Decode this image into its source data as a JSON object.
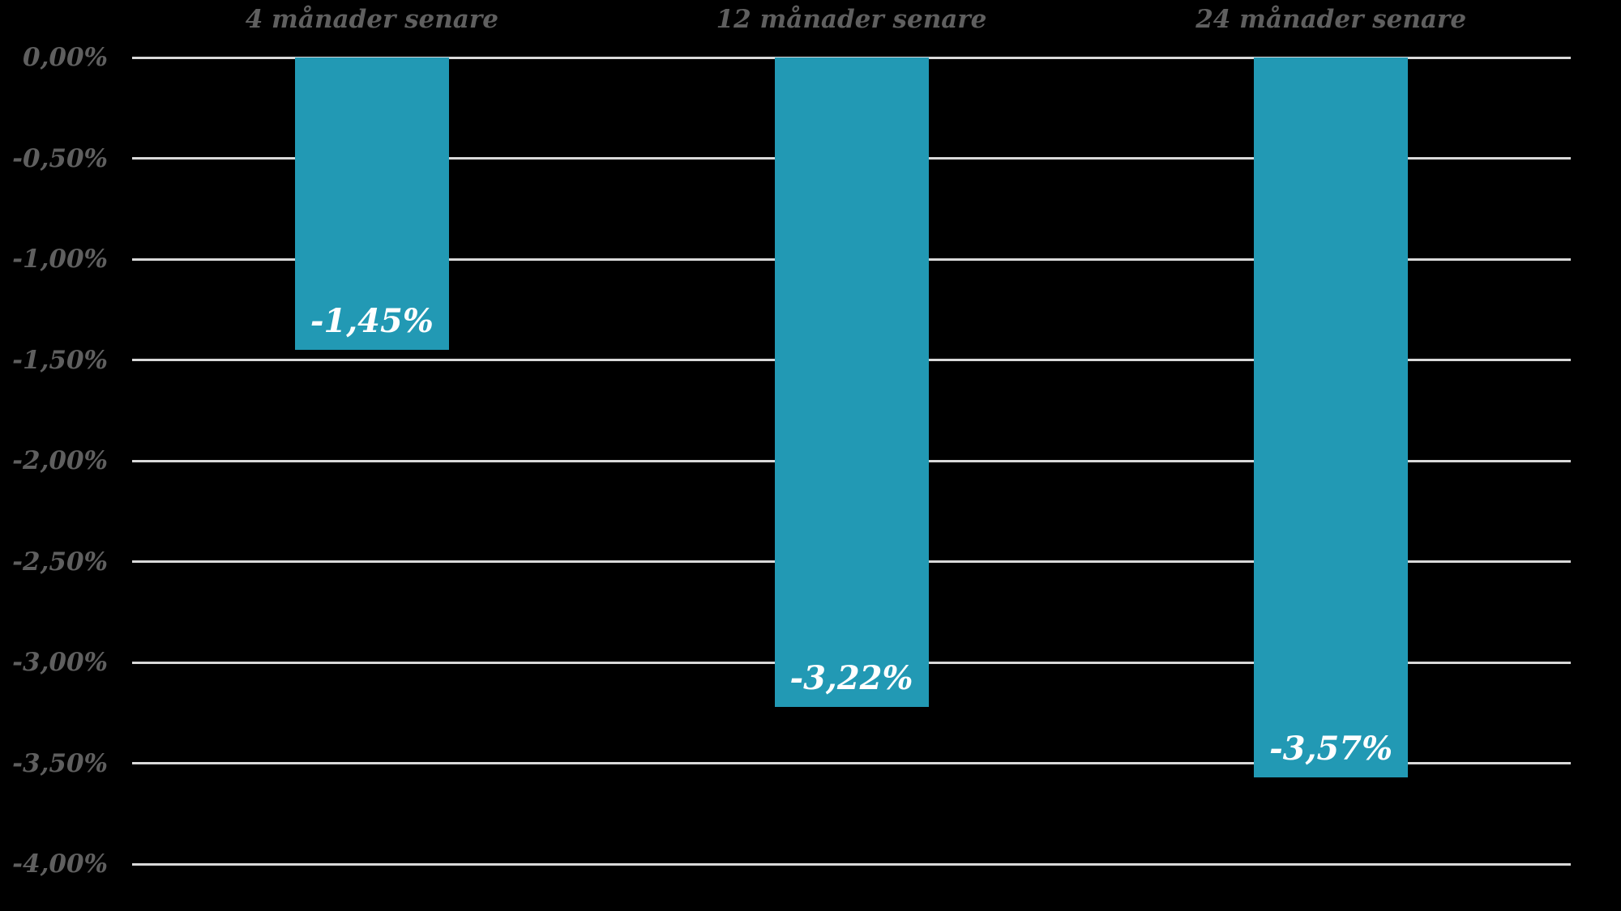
{
  "chart_data": {
    "type": "bar",
    "title": "",
    "categories": [
      "4 månader senare",
      "12 månader senare",
      "24 månader senare"
    ],
    "values": [
      -1.45,
      -3.22,
      -3.57
    ],
    "value_labels": [
      "-1,45%",
      "-3,22%",
      "-3,57%"
    ],
    "series": [
      {
        "name": "",
        "values": [
          -1.45,
          -3.22,
          -3.57
        ]
      }
    ],
    "xlabel": "",
    "ylabel": "",
    "ylim": [
      0,
      -4
    ],
    "y_tick_values": [
      0,
      -0.5,
      -1,
      -1.5,
      -2,
      -2.5,
      -3,
      -3.5,
      -4
    ],
    "y_tick_labels": [
      "0,00%",
      "-0,50%",
      "-1,00%",
      "-1,50%",
      "-2,00%",
      "-2,50%",
      "-3,00%",
      "-3,50%",
      "-4,00%"
    ],
    "grid": "horizontal",
    "legend": "none",
    "decimal_separator": ",",
    "colors": {
      "background": "#000000",
      "bar": "#2299b4",
      "gridline": "#d9d9d9",
      "axis_text": "#5f5f5f",
      "value_label_text": "#ffffff"
    }
  }
}
